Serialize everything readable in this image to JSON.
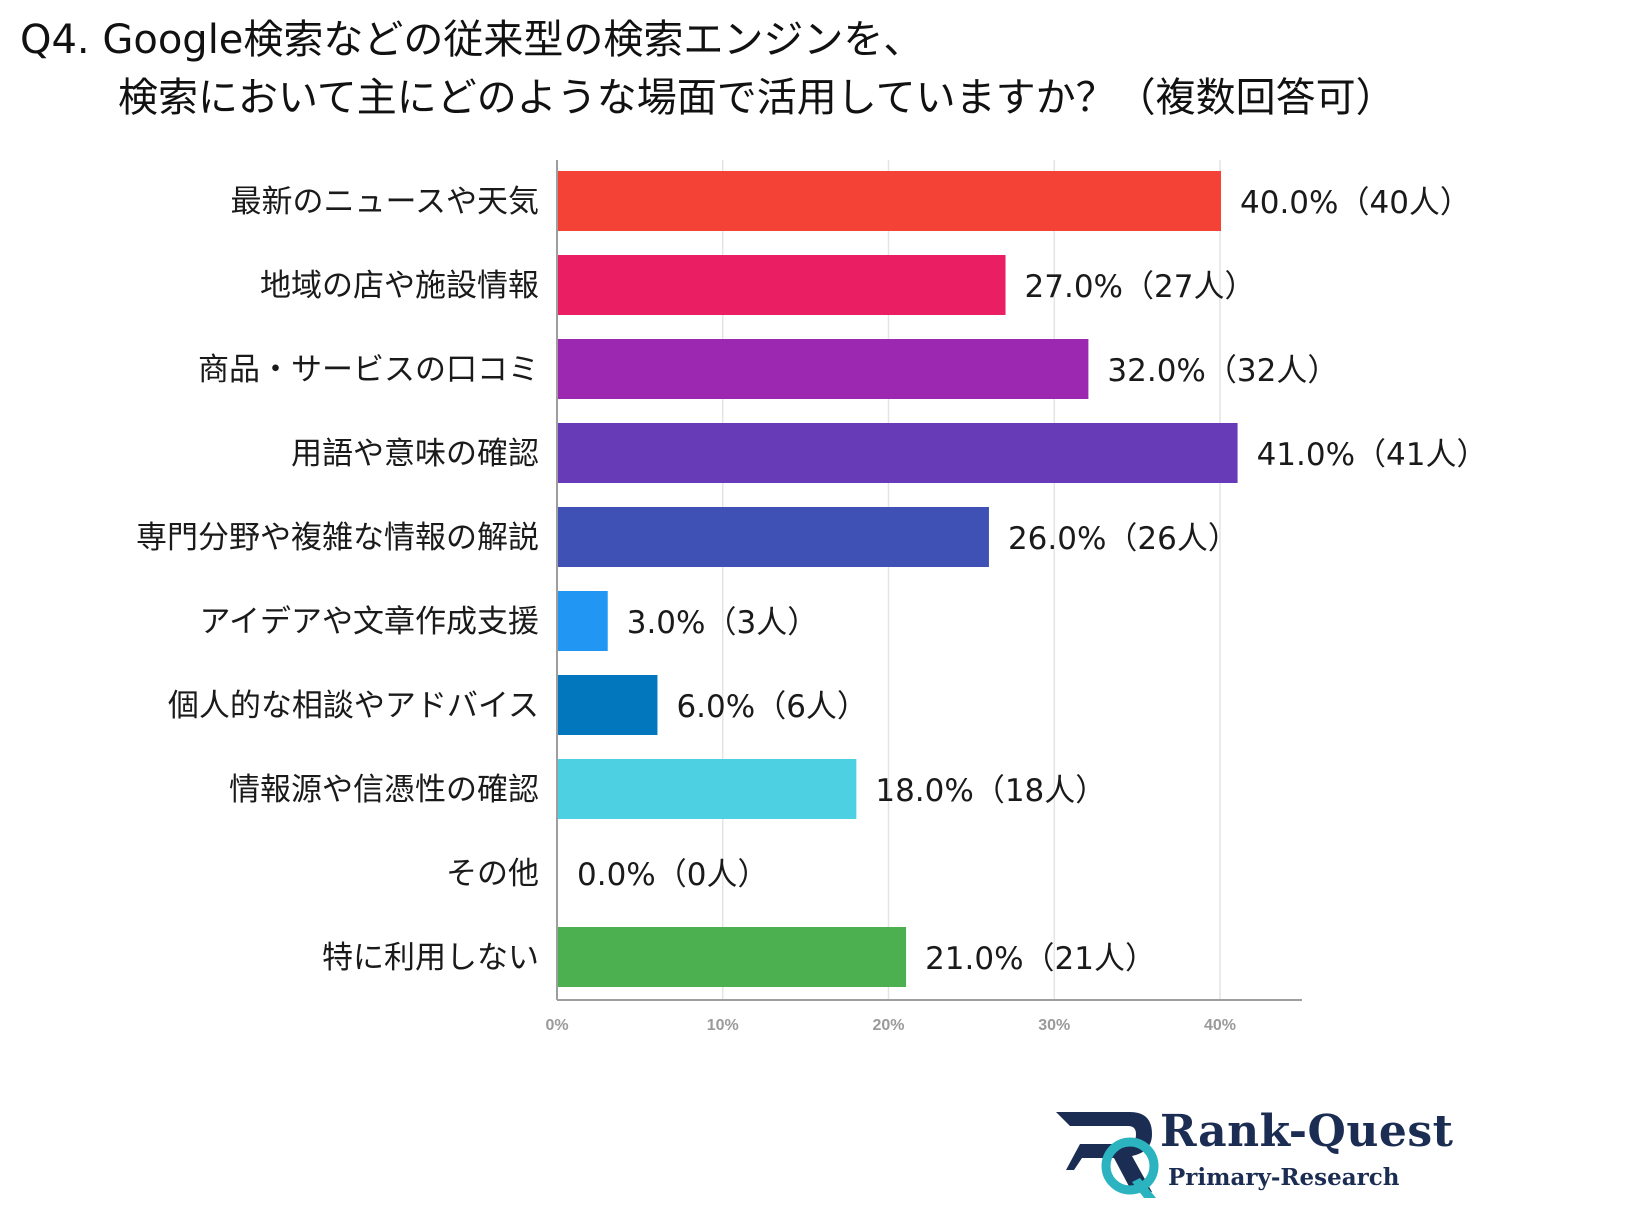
{
  "title": {
    "line1": "Q4. Google検索などの従来型の検索エンジンを、",
    "line2": "検索において主にどのような場面で活用していますか？（複数回答可）"
  },
  "chart_data": {
    "type": "bar",
    "orientation": "horizontal",
    "categories": [
      "最新のニュースや天気",
      "地域の店や施設情報",
      "商品・サービスの口コミ",
      "用語や意味の確認",
      "専門分野や複雑な情報の解説",
      "アイデアや文章作成支援",
      "個人的な相談やアドバイス",
      "情報源や信憑性の確認",
      "その他",
      "特に利用しない"
    ],
    "values": [
      40.0,
      27.0,
      32.0,
      41.0,
      26.0,
      3.0,
      6.0,
      18.0,
      0.0,
      21.0
    ],
    "counts": [
      40,
      27,
      32,
      41,
      26,
      3,
      6,
      18,
      0,
      21
    ],
    "value_labels": [
      "40.0%（40人）",
      "27.0%（27人）",
      "32.0%（32人）",
      "41.0%（41人）",
      "26.0%（26人）",
      "3.0%（3人）",
      "6.0%（6人）",
      "18.0%（18人）",
      "0.0%（0人）",
      "21.0%（21人）"
    ],
    "colors": [
      "#f44336",
      "#e91e63",
      "#9c27b0",
      "#673ab7",
      "#3f51b5",
      "#2196f3",
      "#0277bd",
      "#4dd0e1",
      "#26c6da",
      "#4caf50"
    ],
    "xticks": [
      "0%",
      "10%",
      "20%",
      "30%",
      "40%"
    ],
    "xtick_values": [
      0,
      10,
      20,
      30,
      40
    ],
    "xlim": [
      0,
      45
    ],
    "grid": true,
    "xlabel": "",
    "ylabel": ""
  },
  "branding": {
    "name": "Rank-Quest",
    "sub": "Primary-Research",
    "logo_colors": [
      "#1b2d52",
      "#2bb3c0"
    ]
  }
}
